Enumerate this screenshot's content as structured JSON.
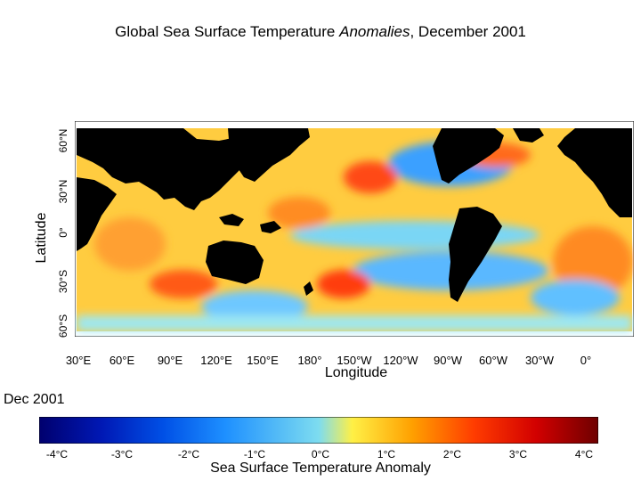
{
  "title": {
    "prefix": "Global Sea Surface Temperature ",
    "emphasis": "Anomalies",
    "suffix": ", December 2001"
  },
  "map": {
    "lat_label": "Latitude",
    "lat_ticks": [
      "60°N",
      "30°N",
      "0°",
      "30°S",
      "60°S"
    ],
    "lon_label": "Longitude",
    "lon_ticks": [
      "30°E",
      "60°E",
      "90°E",
      "120°E",
      "150°E",
      "180°",
      "150°W",
      "120°W",
      "90°W",
      "60°W",
      "30°W",
      "0°"
    ]
  },
  "period_label": "Dec 2001",
  "colorbar": {
    "title": "Sea Surface Temperature Anomaly",
    "ticks": [
      "-4°C",
      "-3°C",
      "-2°C",
      "-1°C",
      "0°C",
      "1°C",
      "2°C",
      "3°C",
      "4°C"
    ],
    "colors": [
      "#00006e",
      "#0018b4",
      "#0050e6",
      "#1e90ff",
      "#7ddcf0",
      "#fff046",
      "#ffa000",
      "#ff3c00",
      "#d20000",
      "#6e0000"
    ]
  }
}
